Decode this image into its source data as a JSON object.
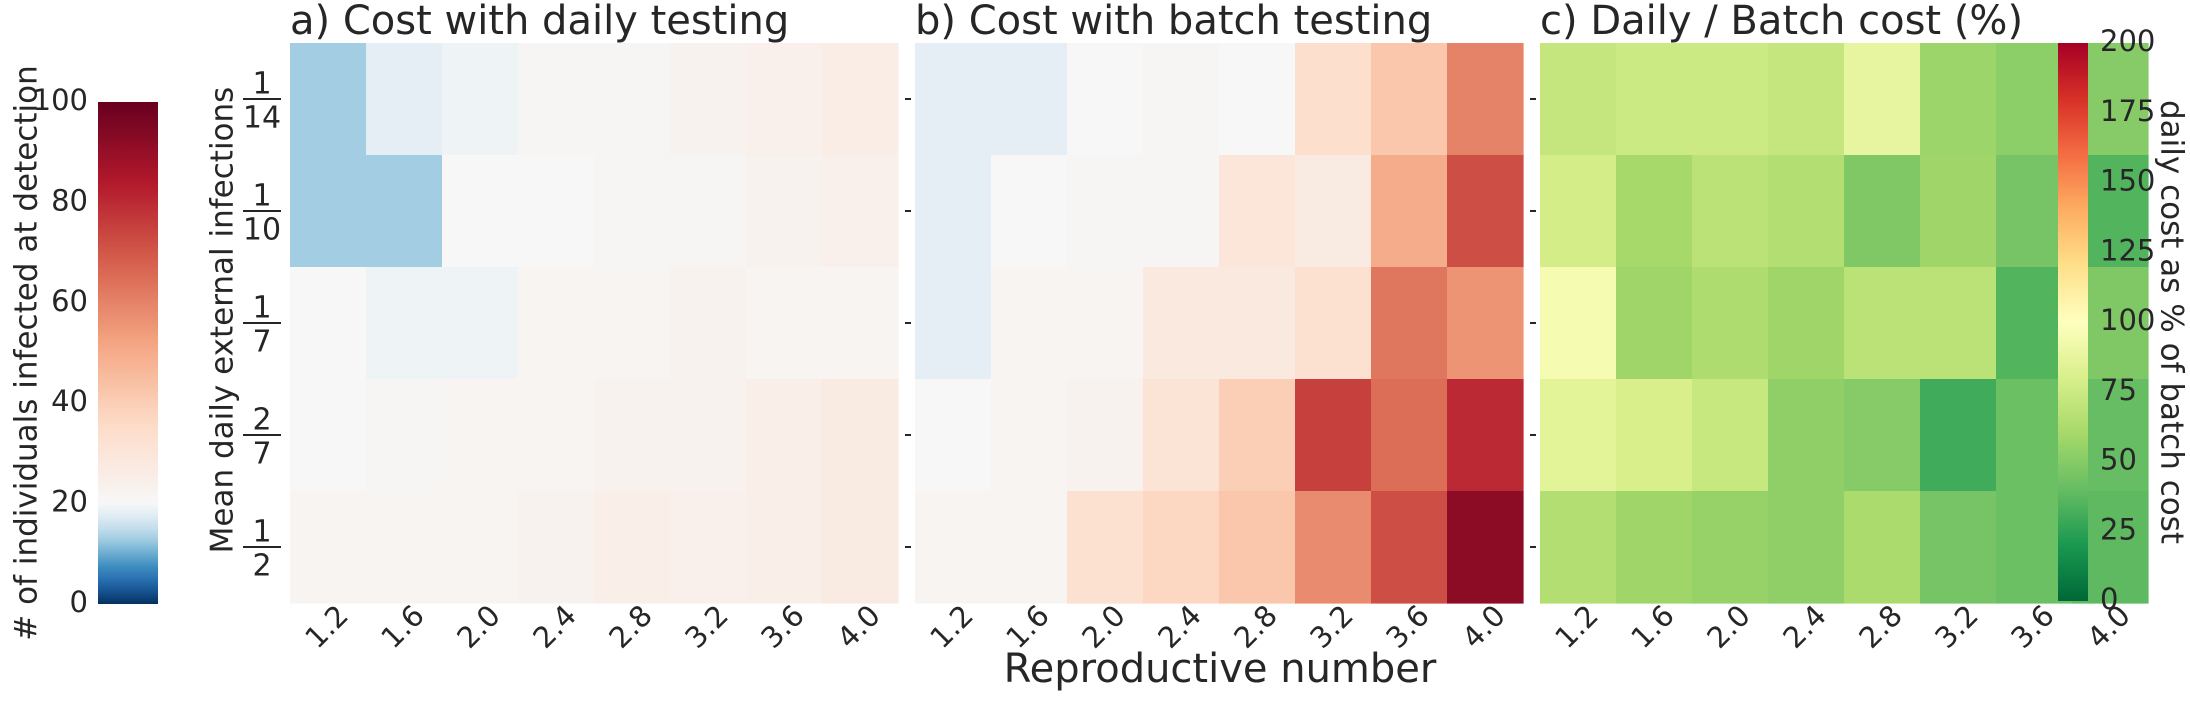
{
  "figure": {
    "xlabel": "Reproductive number",
    "ylabel": "Mean daily external infections",
    "left_colorbar": {
      "label": "# of individuals infected at detection",
      "range": [
        0,
        100
      ],
      "ticks": [
        0,
        20,
        40,
        60,
        80,
        100
      ],
      "colormap": "RdBu_r"
    },
    "right_colorbar": {
      "label": "daily cost as % of batch cost",
      "range": [
        0,
        200
      ],
      "ticks": [
        0,
        25,
        50,
        75,
        100,
        125,
        150,
        175,
        200
      ],
      "colormap": "RdYlGn_r"
    }
  },
  "chart_data": [
    {
      "type": "heatmap",
      "title": "a) Cost with daily testing",
      "x": [
        "1.2",
        "1.6",
        "2.0",
        "2.4",
        "2.8",
        "3.2",
        "3.6",
        "4.0"
      ],
      "y": [
        {
          "num": "1",
          "den": "14"
        },
        {
          "num": "1",
          "den": "10"
        },
        {
          "num": "1",
          "den": "7"
        },
        {
          "num": "2",
          "den": "7"
        },
        {
          "num": "1",
          "den": "2"
        }
      ],
      "values": [
        [
          13,
          18,
          19,
          21,
          21,
          23,
          24,
          26
        ],
        [
          13,
          13,
          20,
          20,
          21,
          21,
          23,
          24
        ],
        [
          20,
          19,
          19,
          22,
          22,
          23,
          22,
          22
        ],
        [
          20,
          21,
          22,
          22,
          23,
          23,
          25,
          27
        ],
        [
          22,
          22,
          22,
          23,
          25,
          24,
          25,
          27
        ]
      ]
    },
    {
      "type": "heatmap",
      "title": "b) Cost with batch testing",
      "x": [
        "1.2",
        "1.6",
        "2.0",
        "2.4",
        "2.8",
        "3.2",
        "3.6",
        "4.0"
      ],
      "y": [
        {
          "num": "1",
          "den": "14"
        },
        {
          "num": "1",
          "den": "10"
        },
        {
          "num": "1",
          "den": "7"
        },
        {
          "num": "2",
          "den": "7"
        },
        {
          "num": "1",
          "den": "2"
        }
      ],
      "values": [
        [
          18,
          18,
          20,
          21,
          20,
          34,
          42,
          60
        ],
        [
          18,
          20,
          21,
          21,
          30,
          27,
          50,
          72
        ],
        [
          18,
          22,
          22,
          28,
          28,
          33,
          63,
          56
        ],
        [
          20,
          22,
          23,
          31,
          40,
          75,
          65,
          80
        ],
        [
          22,
          22,
          33,
          37,
          42,
          58,
          72,
          92
        ]
      ]
    },
    {
      "type": "heatmap",
      "title": "c) Daily / Batch cost (%)",
      "x": [
        "1.2",
        "1.6",
        "2.0",
        "2.4",
        "2.8",
        "3.2",
        "3.6",
        "4.0"
      ],
      "y": [
        {
          "num": "1",
          "den": "14"
        },
        {
          "num": "1",
          "den": "10"
        },
        {
          "num": "1",
          "den": "7"
        },
        {
          "num": "2",
          "den": "7"
        },
        {
          "num": "1",
          "den": "2"
        }
      ],
      "values": [
        [
          72,
          75,
          75,
          72,
          88,
          57,
          52,
          50
        ],
        [
          78,
          60,
          68,
          65,
          48,
          58,
          45,
          35
        ],
        [
          95,
          58,
          63,
          58,
          68,
          68,
          35,
          48
        ],
        [
          85,
          80,
          73,
          53,
          50,
          30,
          42,
          40
        ],
        [
          65,
          58,
          55,
          53,
          62,
          45,
          42,
          38
        ]
      ]
    }
  ]
}
